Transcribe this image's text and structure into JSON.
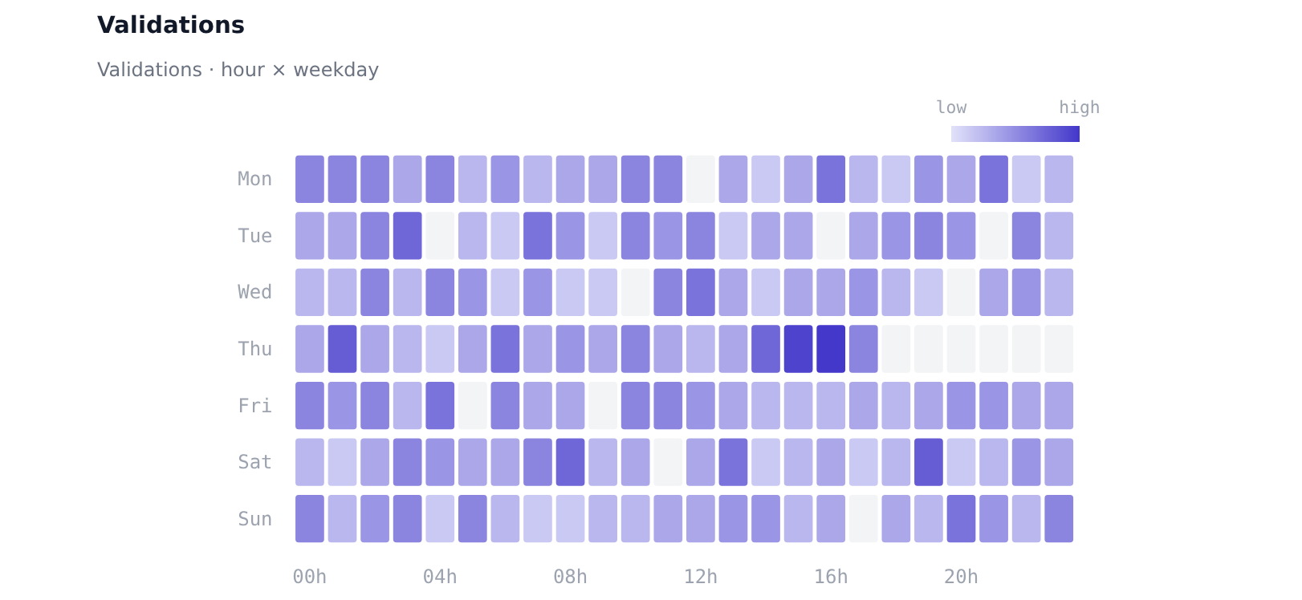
{
  "chart_data": {
    "type": "heatmap",
    "title": "Validations",
    "subtitle": "Validations · hour × weekday",
    "categories": [
      "00h",
      null,
      null,
      null,
      "04h",
      null,
      null,
      null,
      "08h",
      null,
      null,
      null,
      "12h",
      null,
      null,
      null,
      "16h",
      null,
      null,
      null,
      "20h",
      null,
      null,
      null
    ],
    "y_categories": [
      "Mon",
      "Tue",
      "Wed",
      "Thu",
      "Fri",
      "Sat",
      "Sun"
    ],
    "cells": [
      [
        0.55,
        0.55,
        0.55,
        0.35,
        0.55,
        0.25,
        0.45,
        0.25,
        0.35,
        0.35,
        0.55,
        0.55,
        null,
        0.35,
        0.15,
        0.35,
        0.65,
        0.25,
        0.15,
        0.45,
        0.35,
        0.65,
        0.15,
        0.25
      ],
      [
        0.35,
        0.35,
        0.55,
        0.72,
        null,
        0.25,
        0.15,
        0.65,
        0.45,
        0.15,
        0.55,
        0.45,
        0.55,
        0.15,
        0.35,
        0.35,
        null,
        0.35,
        0.45,
        0.55,
        0.45,
        null,
        0.55,
        0.25
      ],
      [
        0.25,
        0.25,
        0.55,
        0.25,
        0.55,
        0.45,
        0.15,
        0.45,
        0.15,
        0.15,
        null,
        0.55,
        0.65,
        0.35,
        0.15,
        0.35,
        0.35,
        0.45,
        0.25,
        0.15,
        null,
        0.35,
        0.45,
        0.25
      ],
      [
        0.35,
        0.78,
        0.35,
        0.25,
        0.15,
        0.35,
        0.65,
        0.35,
        0.45,
        0.35,
        0.55,
        0.35,
        0.25,
        0.35,
        0.72,
        0.93,
        1.0,
        0.55,
        null,
        null,
        null,
        null,
        null,
        null
      ],
      [
        0.55,
        0.45,
        0.55,
        0.25,
        0.65,
        null,
        0.55,
        0.35,
        0.35,
        null,
        0.55,
        0.55,
        0.45,
        0.35,
        0.25,
        0.25,
        0.25,
        0.35,
        0.25,
        0.35,
        0.45,
        0.45,
        0.35,
        0.35
      ],
      [
        0.25,
        0.15,
        0.35,
        0.55,
        0.45,
        0.35,
        0.35,
        0.55,
        0.72,
        0.25,
        0.35,
        null,
        0.35,
        0.65,
        0.15,
        0.25,
        0.35,
        0.15,
        0.25,
        0.78,
        0.15,
        0.25,
        0.45,
        0.35
      ],
      [
        0.55,
        0.25,
        0.45,
        0.55,
        0.15,
        0.55,
        0.25,
        0.15,
        0.15,
        0.25,
        0.25,
        0.35,
        0.35,
        0.45,
        0.45,
        0.25,
        0.35,
        null,
        0.35,
        0.25,
        0.65,
        0.45,
        0.25,
        0.55
      ]
    ],
    "clim": [
      0,
      1
    ],
    "cticks": [
      {
        "value": 0,
        "label": "low"
      },
      {
        "value": 1,
        "label": "high"
      }
    ]
  }
}
